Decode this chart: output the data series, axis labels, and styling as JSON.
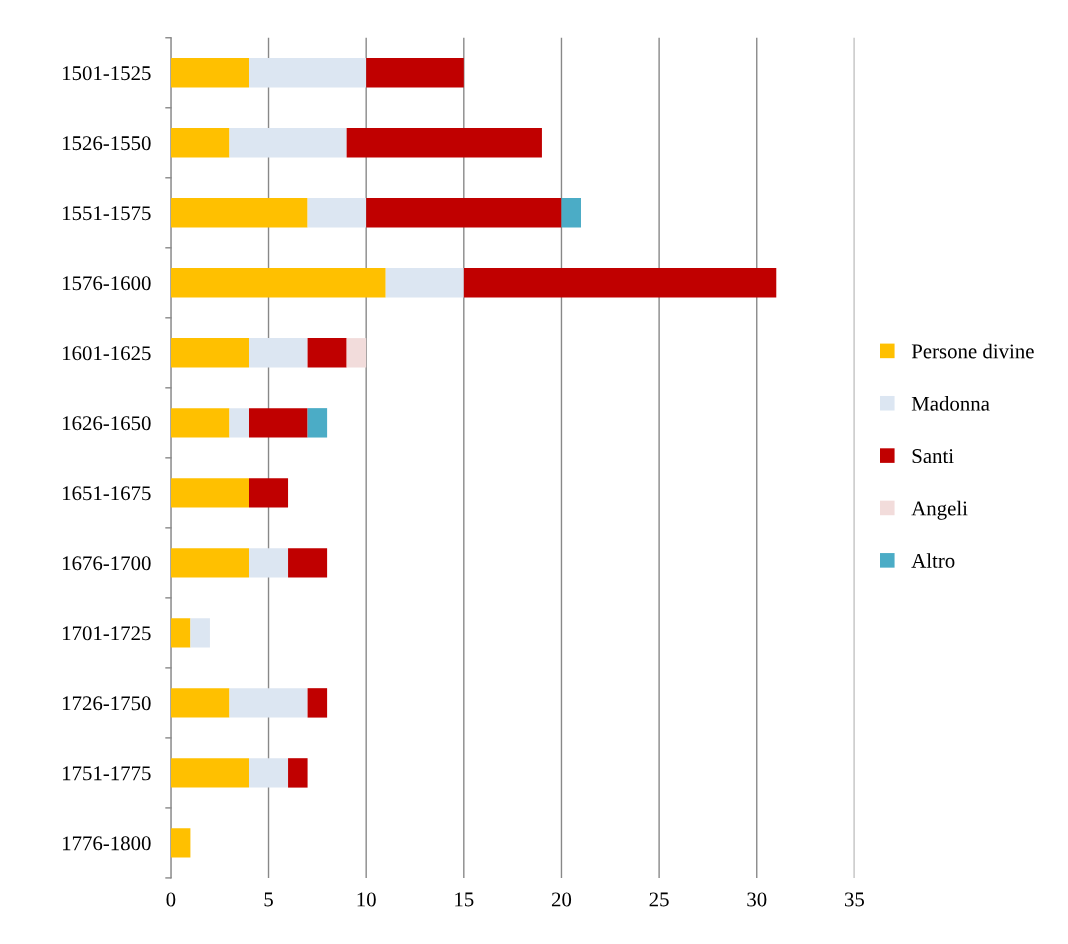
{
  "chart_data": {
    "type": "bar",
    "orientation": "horizontal",
    "stacked": true,
    "categories": [
      "1501-1525",
      "1526-1550",
      "1551-1575",
      "1576-1600",
      "1601-1625",
      "1626-1650",
      "1651-1675",
      "1676-1700",
      "1701-1725",
      "1726-1750",
      "1751-1775",
      "1776-1800"
    ],
    "series": [
      {
        "name": "Persone divine",
        "color": "#ffc000",
        "values": [
          4,
          3,
          7,
          11,
          4,
          3,
          4,
          4,
          1,
          3,
          4,
          1
        ]
      },
      {
        "name": "Madonna",
        "color": "#dce6f2",
        "values": [
          6,
          6,
          3,
          4,
          3,
          1,
          0,
          2,
          1,
          4,
          2,
          0
        ]
      },
      {
        "name": "Santi",
        "color": "#c00000",
        "values": [
          5,
          10,
          10,
          16,
          2,
          3,
          2,
          2,
          0,
          1,
          1,
          0
        ]
      },
      {
        "name": "Angeli",
        "color": "#f2dcdb",
        "values": [
          0,
          0,
          0,
          0,
          1,
          0,
          0,
          0,
          0,
          0,
          0,
          0
        ]
      },
      {
        "name": "Altro",
        "color": "#4bacc6",
        "values": [
          0,
          0,
          1,
          0,
          0,
          1,
          0,
          0,
          0,
          0,
          0,
          0
        ]
      }
    ],
    "xlim": [
      0,
      35
    ],
    "xticks": [
      0,
      5,
      10,
      15,
      20,
      25,
      30,
      35
    ],
    "grid": "x",
    "legend": "right"
  }
}
